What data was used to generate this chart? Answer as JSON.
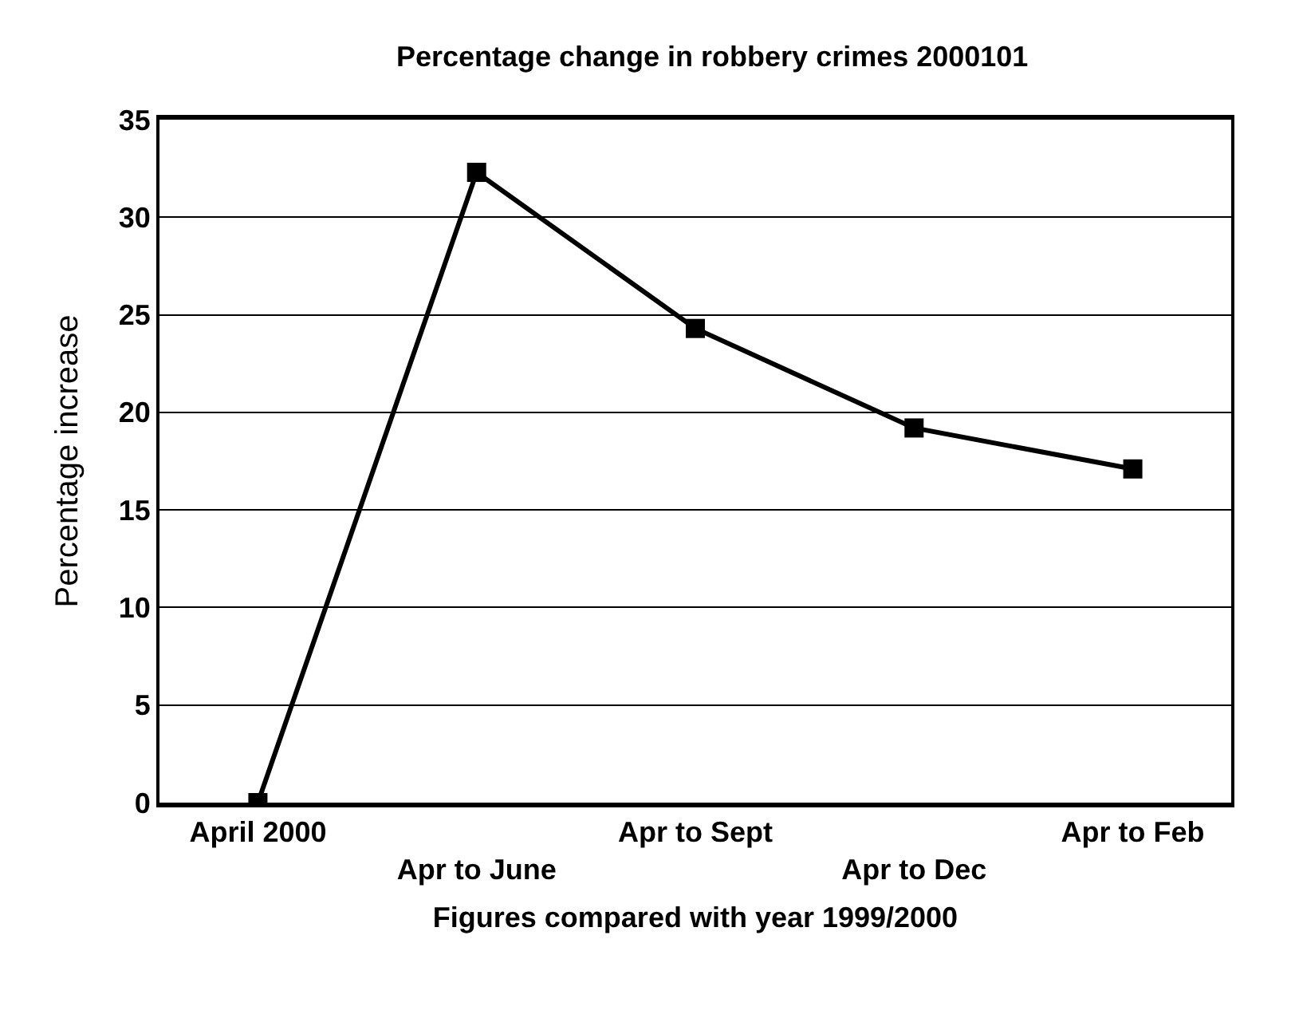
{
  "chart_data": {
    "type": "line",
    "title": "Percentage change in robbery crimes 2000101",
    "xlabel": "Figures compared with year 1999/2000",
    "ylabel": "Percentage increase",
    "categories": [
      "April 2000",
      "Apr to June",
      "Apr to Sept",
      "Apr to Dec",
      "Apr to Feb"
    ],
    "series": [
      {
        "color": "#000000",
        "values": [
          0,
          32.3,
          24.3,
          19.2,
          17.1
        ]
      }
    ],
    "ylim": [
      0,
      35
    ],
    "yticks": [
      0,
      5,
      10,
      15,
      20,
      25,
      30,
      35
    ],
    "grid": "y",
    "marker": "square",
    "line_style": "solid"
  }
}
